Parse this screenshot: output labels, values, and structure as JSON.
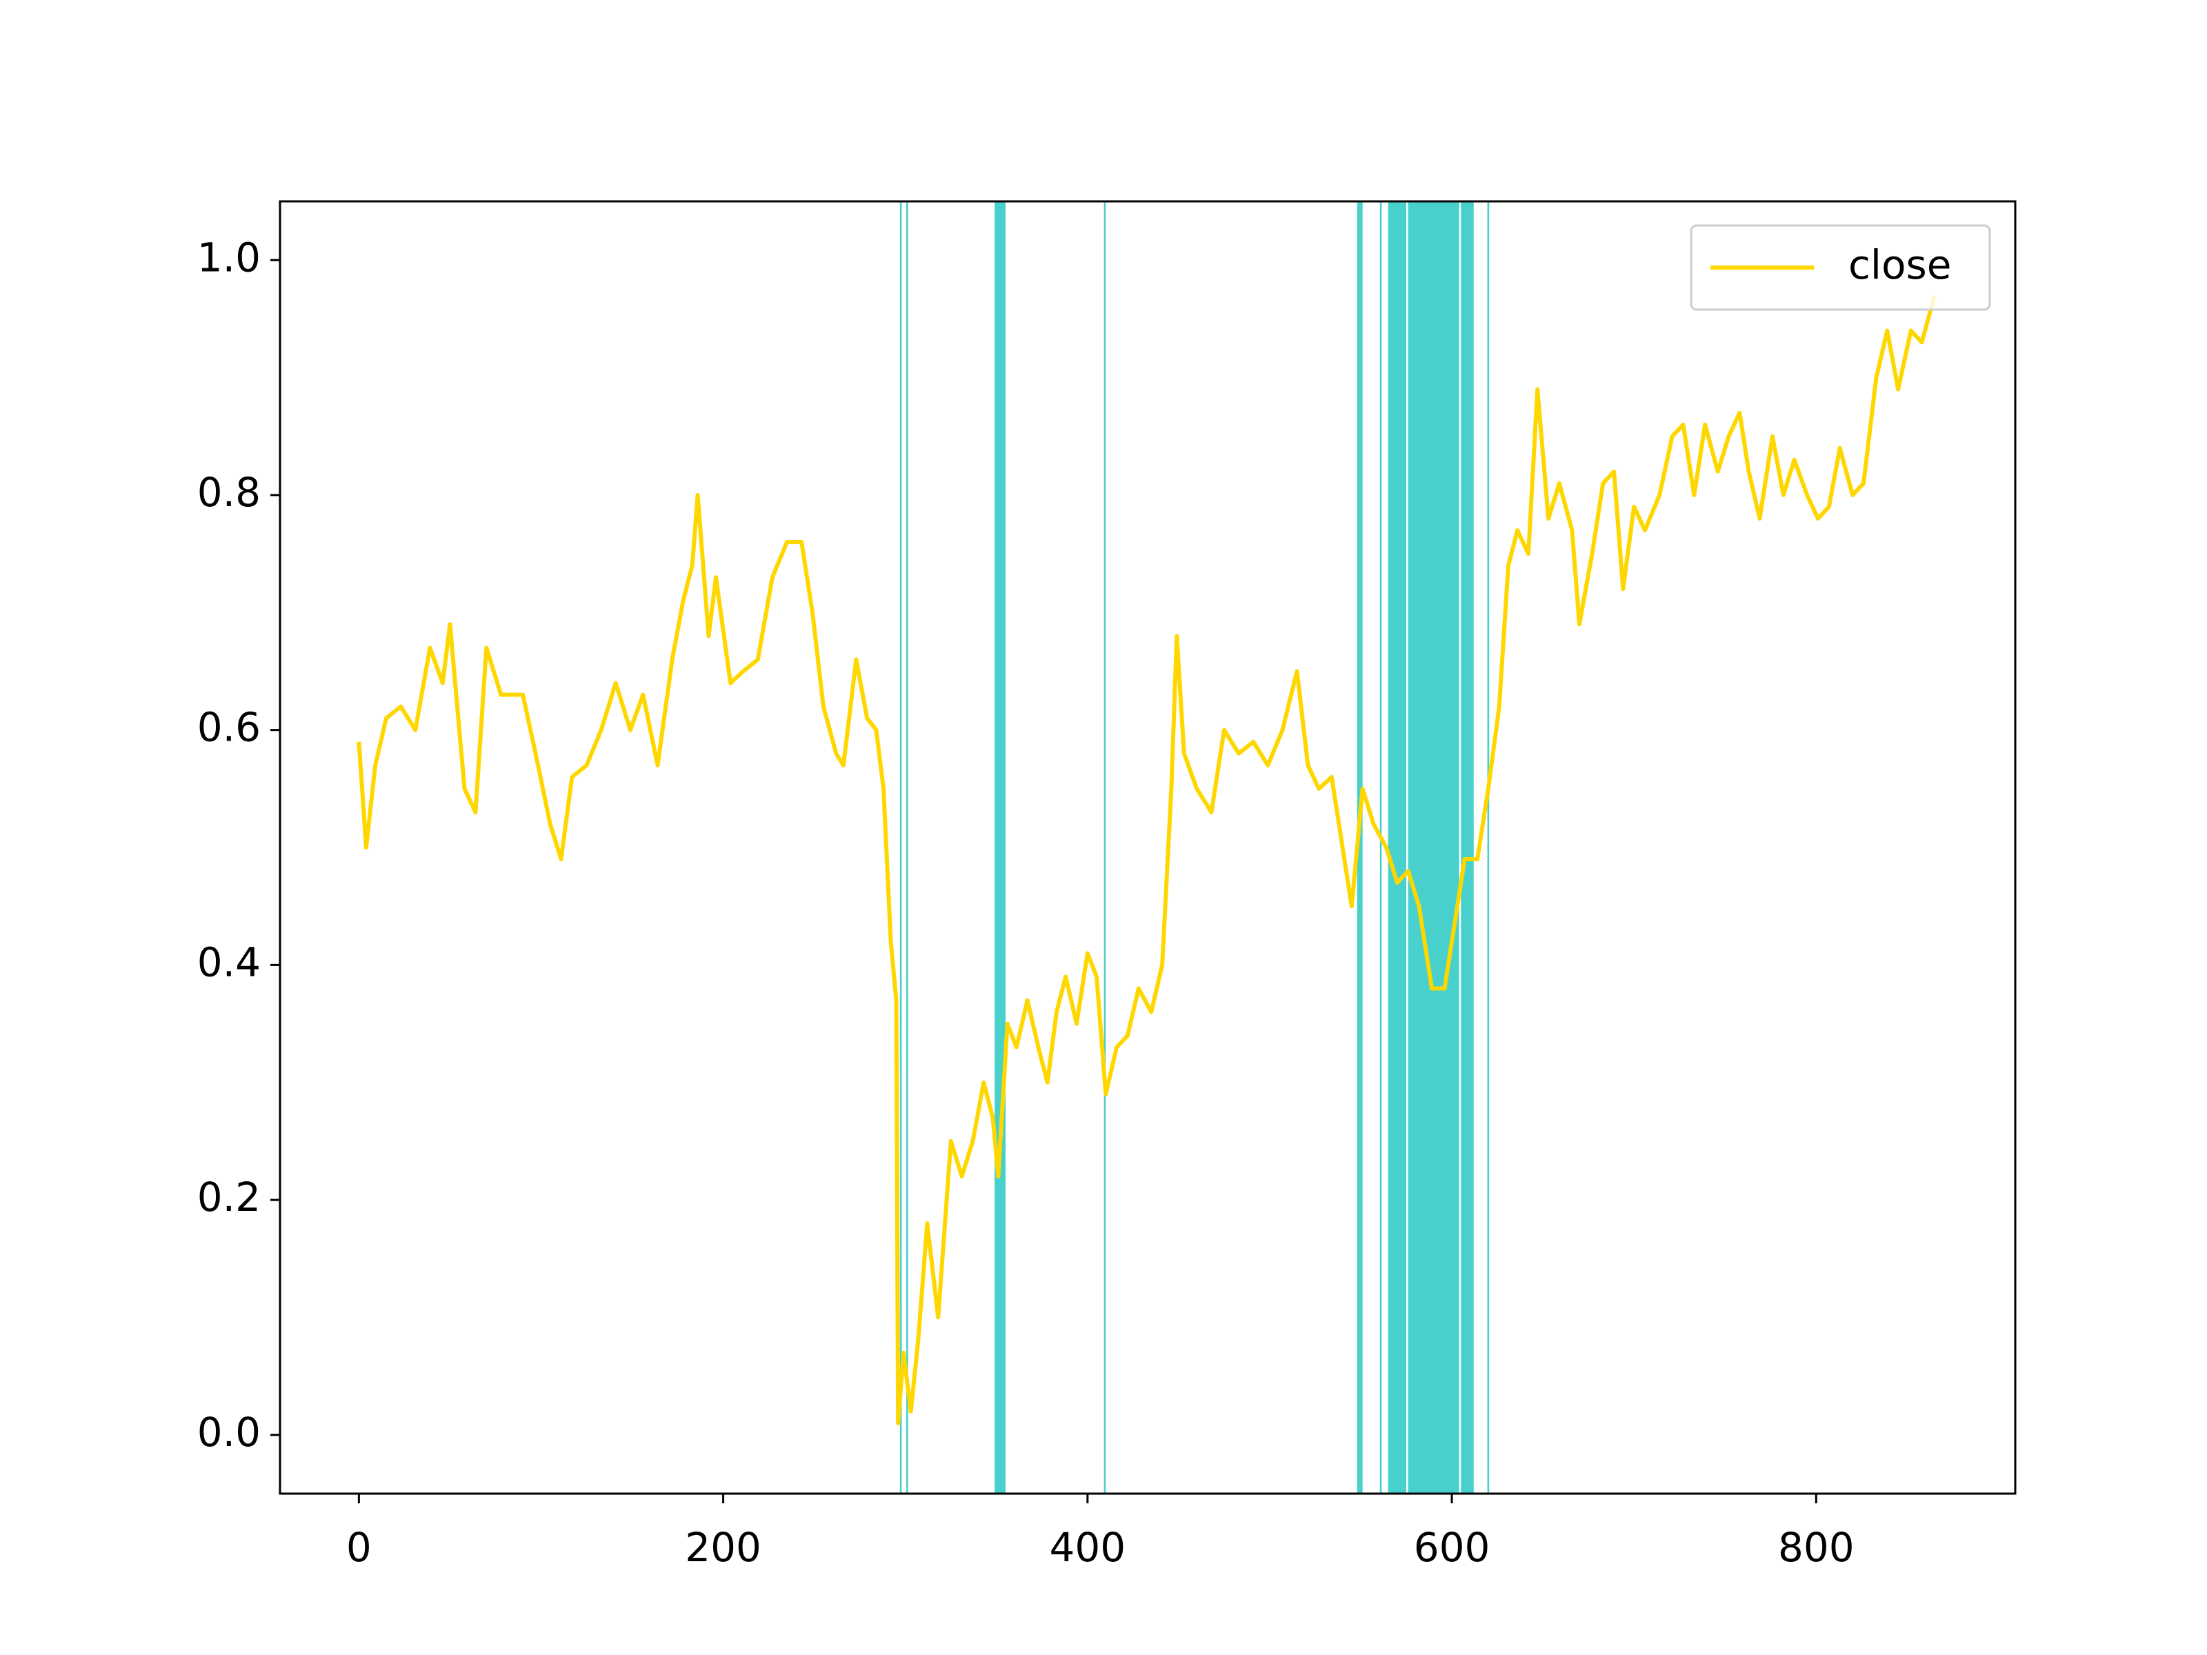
{
  "chart_data": {
    "type": "line",
    "x": [
      0,
      4,
      9,
      15,
      23,
      31,
      39,
      46,
      50,
      58,
      64,
      70,
      78,
      90,
      97,
      105,
      111,
      117,
      125,
      133,
      141,
      149,
      156,
      164,
      172,
      178,
      183,
      186,
      192,
      196,
      204,
      211,
      219,
      227,
      235,
      243,
      249,
      255,
      262,
      266,
      273,
      279,
      284,
      288,
      292,
      295,
      296,
      299,
      303,
      307,
      312,
      318,
      325,
      331,
      337,
      343,
      348,
      351,
      356,
      361,
      367,
      373,
      378,
      383,
      388,
      394,
      400,
      405,
      410,
      416,
      422,
      428,
      435,
      441,
      446,
      449,
      453,
      460,
      468,
      475,
      483,
      491,
      499,
      507,
      515,
      521,
      527,
      534,
      540,
      545,
      551,
      557,
      564,
      570,
      576,
      582,
      589,
      596,
      603,
      607,
      614,
      620,
      626,
      631,
      636,
      642,
      647,
      653,
      659,
      666,
      670,
      677,
      683,
      689,
      694,
      700,
      706,
      714,
      721,
      727,
      733,
      739,
      746,
      752,
      758,
      763,
      769,
      776,
      782,
      788,
      795,
      801,
      807,
      813,
      820,
      826,
      833,
      839,
      845,
      852,
      858,
      865
    ],
    "series": [
      {
        "name": "close",
        "color": "#ffd700",
        "values": [
          0.59,
          0.5,
          0.57,
          0.61,
          0.62,
          0.6,
          0.67,
          0.64,
          0.69,
          0.55,
          0.53,
          0.67,
          0.63,
          0.63,
          0.58,
          0.52,
          0.49,
          0.56,
          0.57,
          0.6,
          0.64,
          0.6,
          0.63,
          0.57,
          0.66,
          0.71,
          0.74,
          0.8,
          0.68,
          0.73,
          0.64,
          0.65,
          0.66,
          0.73,
          0.76,
          0.76,
          0.7,
          0.62,
          0.58,
          0.57,
          0.66,
          0.61,
          0.6,
          0.55,
          0.42,
          0.37,
          0.01,
          0.07,
          0.02,
          0.08,
          0.18,
          0.1,
          0.25,
          0.22,
          0.25,
          0.3,
          0.27,
          0.22,
          0.35,
          0.33,
          0.37,
          0.33,
          0.3,
          0.36,
          0.39,
          0.35,
          0.41,
          0.39,
          0.29,
          0.33,
          0.34,
          0.38,
          0.36,
          0.4,
          0.55,
          0.68,
          0.58,
          0.55,
          0.53,
          0.6,
          0.58,
          0.59,
          0.57,
          0.6,
          0.65,
          0.57,
          0.55,
          0.56,
          0.5,
          0.45,
          0.55,
          0.52,
          0.5,
          0.47,
          0.48,
          0.45,
          0.38,
          0.38,
          0.45,
          0.49,
          0.49,
          0.55,
          0.62,
          0.74,
          0.77,
          0.75,
          0.89,
          0.78,
          0.81,
          0.77,
          0.69,
          0.75,
          0.81,
          0.82,
          0.72,
          0.79,
          0.77,
          0.8,
          0.85,
          0.86,
          0.8,
          0.86,
          0.82,
          0.85,
          0.87,
          0.82,
          0.78,
          0.85,
          0.8,
          0.83,
          0.8,
          0.78,
          0.79,
          0.84,
          0.8,
          0.81,
          0.9,
          0.94,
          0.89,
          0.94,
          0.93,
          0.97
        ]
      }
    ],
    "spans": [
      [
        297,
        298
      ],
      [
        300.5,
        301.5
      ],
      [
        349,
        355
      ],
      [
        409,
        410
      ],
      [
        548,
        551
      ],
      [
        560.5,
        561.5
      ],
      [
        565,
        575
      ],
      [
        576,
        604
      ],
      [
        605,
        612
      ],
      [
        619.5,
        620.5
      ]
    ],
    "span_color": "#48d1cc",
    "xlim": [
      -43.3,
      909.3
    ],
    "ylim": [
      -0.05,
      1.05
    ],
    "xticks": [
      0,
      200,
      400,
      600,
      800
    ],
    "yticks": [
      {
        "value": 0,
        "label": "0.0"
      },
      0.2,
      0.4,
      0.6,
      0.8,
      {
        "value": 1,
        "label": "1.0"
      }
    ],
    "legend": "upper right"
  }
}
